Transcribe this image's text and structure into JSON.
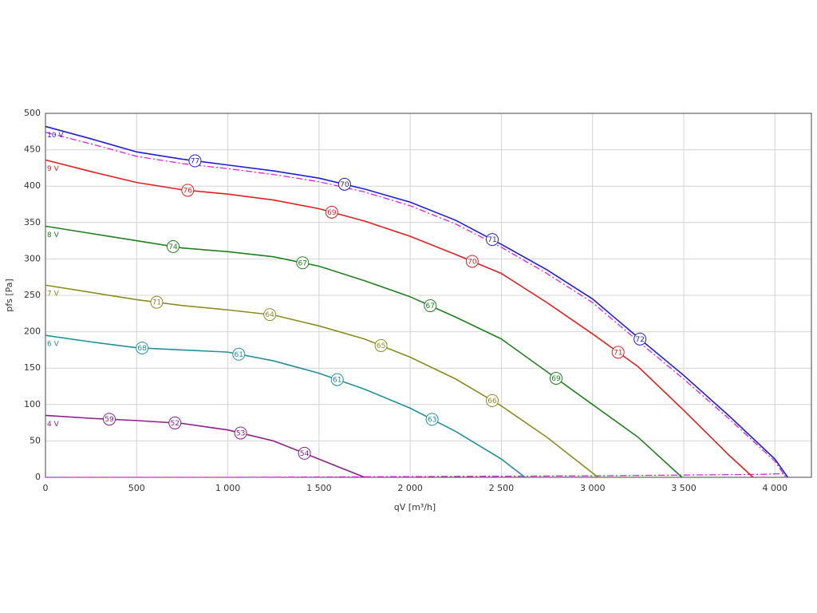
{
  "chart_data": {
    "type": "line",
    "x_label": "qV [m³/h]",
    "y_label": "pfs [Pa]",
    "xlim": [
      0,
      4200
    ],
    "ylim": [
      0,
      500
    ],
    "grid": true,
    "xticks": [
      0,
      500,
      {
        "value": 1000,
        "label": "1 000"
      },
      {
        "value": 1500,
        "label": "1 500"
      },
      {
        "value": 2000,
        "label": "2 000"
      },
      {
        "value": 2500,
        "label": "2 500"
      },
      {
        "value": 3000,
        "label": "3 000"
      },
      {
        "value": 3500,
        "label": "3 500"
      },
      {
        "value": 4000,
        "label": "4 000"
      }
    ],
    "yticks": [
      0,
      50,
      100,
      150,
      200,
      250,
      300,
      350,
      400,
      450,
      500
    ],
    "series": [
      {
        "color": "#e020e0",
        "style": "dashdot",
        "x": [
          0,
          250,
          500,
          750,
          1000,
          1250,
          1500,
          1750,
          2000,
          2250,
          2500,
          2750,
          3000,
          3250,
          3500,
          3750,
          4000,
          4060
        ],
        "values": [
          474,
          458,
          441,
          431,
          424,
          416,
          406,
          392,
          373,
          348,
          316,
          280,
          240,
          187,
          135,
          80,
          22,
          0
        ]
      },
      {
        "color": "#e020e0",
        "style": "dashdot",
        "x": [
          0,
          1000,
          2000,
          3000,
          3900,
          4060
        ],
        "values": [
          0,
          0,
          1,
          2,
          4,
          5
        ]
      },
      {
        "name": "10 V",
        "color": "#1f1fd0",
        "x": [
          0,
          250,
          500,
          750,
          1000,
          1250,
          1500,
          1750,
          2000,
          2250,
          2500,
          2750,
          3000,
          3250,
          3500,
          3750,
          4000,
          4070
        ],
        "values": [
          482,
          465,
          447,
          437,
          429,
          421,
          411,
          396,
          378,
          353,
          320,
          285,
          245,
          192,
          140,
          84,
          25,
          0
        ],
        "marker_x": [
          820,
          1640,
          2450,
          3260
        ],
        "marker_labels": [
          77,
          70,
          71,
          72
        ]
      },
      {
        "name": "9 V",
        "color": "#e02020",
        "x": [
          0,
          250,
          500,
          750,
          1000,
          1250,
          1500,
          1750,
          2000,
          2250,
          2500,
          2750,
          3000,
          3250,
          3500,
          3750,
          3880
        ],
        "values": [
          436,
          420,
          405,
          395,
          389,
          381,
          369,
          352,
          331,
          306,
          280,
          240,
          197,
          152,
          92,
          30,
          0
        ],
        "marker_x": [
          780,
          1570,
          2340,
          3140
        ],
        "marker_labels": [
          76,
          69,
          70,
          71
        ]
      },
      {
        "name": "8 V",
        "color": "#208020",
        "x": [
          0,
          250,
          500,
          750,
          1000,
          1250,
          1500,
          1750,
          2000,
          2250,
          2500,
          2750,
          3000,
          3250,
          3490
        ],
        "values": [
          345,
          335,
          325,
          315,
          310,
          303,
          290,
          270,
          248,
          220,
          190,
          145,
          100,
          55,
          0
        ],
        "marker_x": [
          700,
          1410,
          2110,
          2800
        ],
        "marker_labels": [
          74,
          67,
          67,
          69
        ]
      },
      {
        "name": "7 V",
        "color": "#8c8c20",
        "x": [
          0,
          250,
          500,
          750,
          1000,
          1250,
          1500,
          1750,
          2000,
          2250,
          2500,
          2750,
          3030
        ],
        "values": [
          264,
          254,
          244,
          236,
          230,
          223,
          208,
          190,
          165,
          135,
          98,
          55,
          0
        ],
        "marker_x": [
          610,
          1230,
          1840,
          2450
        ],
        "marker_labels": [
          71,
          64,
          65,
          66
        ]
      },
      {
        "name": "6 V",
        "color": "#20909a",
        "x": [
          0,
          250,
          500,
          750,
          1000,
          1250,
          1500,
          1750,
          2000,
          2250,
          2500,
          2630
        ],
        "values": [
          195,
          186,
          178,
          175,
          172,
          160,
          143,
          121,
          95,
          63,
          25,
          0
        ],
        "marker_x": [
          530,
          1060,
          1600,
          2120
        ],
        "marker_labels": [
          68,
          61,
          61,
          63
        ]
      },
      {
        "name": "4 V",
        "color": "#8a208a",
        "x": [
          0,
          250,
          500,
          750,
          1000,
          1250,
          1500,
          1750
        ],
        "values": [
          85,
          81,
          78,
          74,
          65,
          50,
          25,
          0
        ],
        "marker_x": [
          350,
          710,
          1070,
          1420
        ],
        "marker_labels": [
          59,
          52,
          53,
          54
        ]
      }
    ]
  }
}
